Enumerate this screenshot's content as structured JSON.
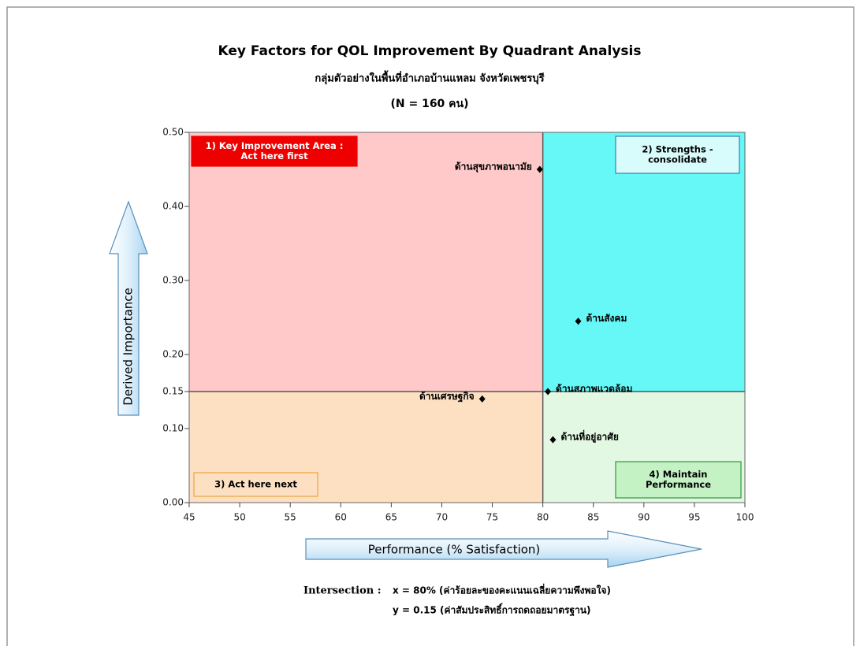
{
  "chart_data": {
    "type": "scatter",
    "title": "Key Factors for QOL Improvement By Quadrant Analysis",
    "subtitle": "กลุ่มตัวอย่างในพื้นที่อำเภอบ้านแหลม  จังหวัดเพชรบุรี",
    "subtitle2": "(N = 160 คน)",
    "x_label": "Performance (% Satisfaction)",
    "y_label": "Derived Importance",
    "xlim": [
      45,
      100
    ],
    "ylim": [
      0,
      0.5
    ],
    "xticks": [
      45,
      50,
      55,
      60,
      65,
      70,
      75,
      80,
      85,
      90,
      95,
      100
    ],
    "yticks": [
      {
        "value": 0,
        "label": "0.00"
      },
      {
        "value": 0.1,
        "label": "0.10"
      },
      {
        "value": 0.15,
        "label": "0.15"
      },
      {
        "value": 0.2,
        "label": "0.20"
      },
      {
        "value": 0.3,
        "label": "0.30"
      },
      {
        "value": 0.4,
        "label": "0.40"
      },
      {
        "value": 0.5,
        "label": "0.50"
      }
    ],
    "intersection": {
      "x": 80,
      "y": 0.15
    },
    "x": [
      79.7,
      83.5,
      80.5,
      74,
      81
    ],
    "values": [
      0.45,
      0.245,
      0.15,
      0.14,
      0.085
    ],
    "point_labels": [
      "ด้านสุขภาพอนามัย",
      "ด้านสังคม",
      "ด้านสภาพแวดล้อม",
      "ด้านเศรษฐกิจ",
      "ด้านที่อยู่อาศัย"
    ],
    "color": "#000000",
    "quadrants": [
      {
        "label": [
          "1) Key Improvement Area :",
          "Act here first"
        ],
        "color": "#ffc9c9"
      },
      {
        "label": [
          "2) Strengths -",
          "consolidate"
        ],
        "color": "#66f7f7"
      },
      {
        "label": [
          "3) Act here next"
        ],
        "color": "#fde0c2"
      },
      {
        "label": [
          "4) Maintain",
          "Performance"
        ],
        "color": "#e2f8e2"
      }
    ],
    "annotation": {
      "label": "Intersection :",
      "lines": [
        "x =  80%  (ค่าร้อยละของคะแนนเฉลี่ยความพึงพอใจ)",
        "y =  0.15  (ค่าสัมประสิทธิ์การถดถอยมาตรฐาน)"
      ]
    }
  }
}
